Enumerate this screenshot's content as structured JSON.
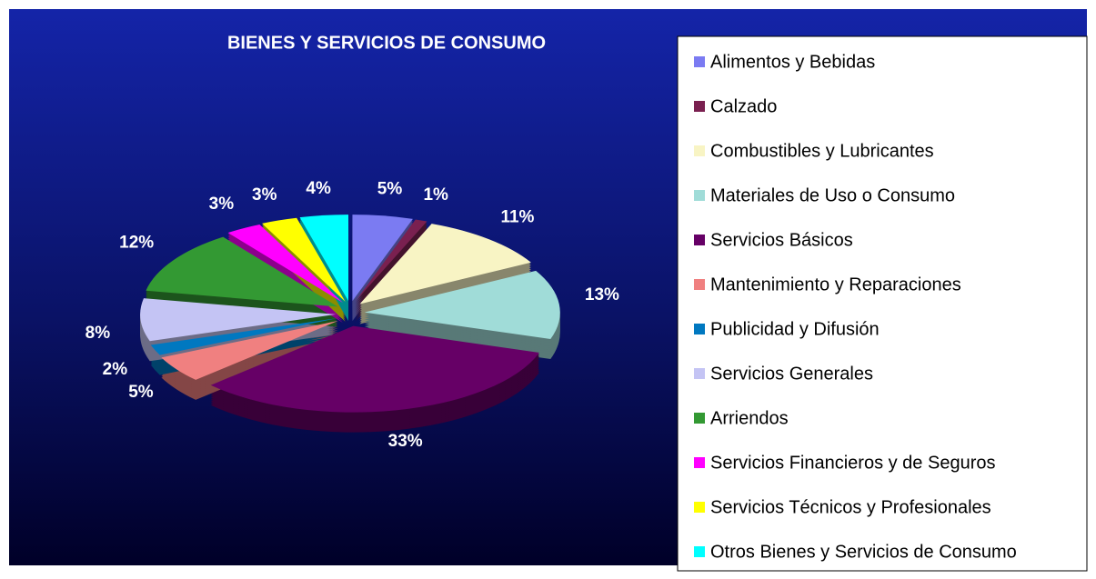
{
  "chart_data": {
    "type": "pie",
    "title": "BIENES Y SERVICIOS DE CONSUMO",
    "categories": [
      "Alimentos y Bebidas",
      "Calzado",
      "Combustibles y Lubricantes",
      "Materiales de Uso o Consumo",
      "Servicios Básicos",
      "Mantenimiento y Reparaciones",
      "Publicidad y Difusión",
      "Servicios Generales",
      "Arriendos",
      "Servicios Financieros y de Seguros",
      "Servicios Técnicos y Profesionales",
      "Otros Bienes y Servicios de Consumo"
    ],
    "values": [
      5,
      1,
      11,
      13,
      33,
      5,
      2,
      8,
      12,
      3,
      3,
      4
    ],
    "value_labels": [
      "5%",
      "1%",
      "11%",
      "13%",
      "33%",
      "5%",
      "2%",
      "8%",
      "12%",
      "3%",
      "3%",
      "4%"
    ],
    "colors": [
      "#7b7bf2",
      "#7a2050",
      "#f8f4c4",
      "#a0dcd8",
      "#660066",
      "#f08080",
      "#0078c0",
      "#c4c4f4",
      "#339933",
      "#ff00ff",
      "#ffff00",
      "#00ffff"
    ],
    "legend": "right"
  }
}
